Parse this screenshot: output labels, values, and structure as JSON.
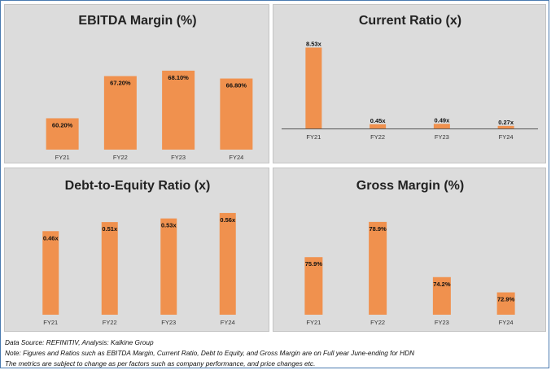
{
  "chart_data": [
    {
      "type": "bar",
      "title": "EBITDA Margin (%)",
      "categories": [
        "FY21",
        "FY22",
        "FY23",
        "FY24"
      ],
      "values": [
        60.2,
        67.2,
        68.1,
        66.8
      ],
      "labels": [
        "60.20%",
        "67.20%",
        "68.10%",
        "66.80%"
      ],
      "ylim": [
        55,
        72
      ],
      "color": "#f0914e",
      "grid": false
    },
    {
      "type": "bar",
      "title": "Current Ratio (x)",
      "categories": [
        "FY21",
        "FY22",
        "FY23",
        "FY24"
      ],
      "values": [
        8.53,
        0.45,
        0.49,
        0.27
      ],
      "labels": [
        "8.53x",
        "0.45x",
        "0.49x",
        "0.27x"
      ],
      "ylim": [
        0,
        9.6
      ],
      "color": "#f0914e",
      "grid": false
    },
    {
      "type": "bar",
      "title": "Debt-to-Equity Ratio (x)",
      "categories": [
        "FY21",
        "FY22",
        "FY23",
        "FY24"
      ],
      "values": [
        0.46,
        0.51,
        0.53,
        0.56
      ],
      "labels": [
        "0.46x",
        "0.51x",
        "0.53x",
        "0.56x"
      ],
      "ylim": [
        0,
        0.6
      ],
      "color": "#f0914e",
      "grid": false
    },
    {
      "type": "bar",
      "title": "Gross Margin (%)",
      "categories": [
        "FY21",
        "FY22",
        "FY23",
        "FY24"
      ],
      "values": [
        75.9,
        78.9,
        74.2,
        72.9
      ],
      "labels": [
        "75.9%",
        "78.9%",
        "74.2%",
        "72.9%"
      ],
      "ylim": [
        71,
        80
      ],
      "color": "#f0914e",
      "grid": false
    }
  ],
  "notes": {
    "source": "Data Source: REFINITIV, Analysis: Kalkine Group",
    "note": "Note: Figures and Ratios such as EBITDA Margin, Current Ratio, Debt to Equity, and Gross Margin are on Full year June-ending for HDN",
    "disclaimer": "The metrics are subject to change as per factors such as company performance, and price changes etc."
  }
}
